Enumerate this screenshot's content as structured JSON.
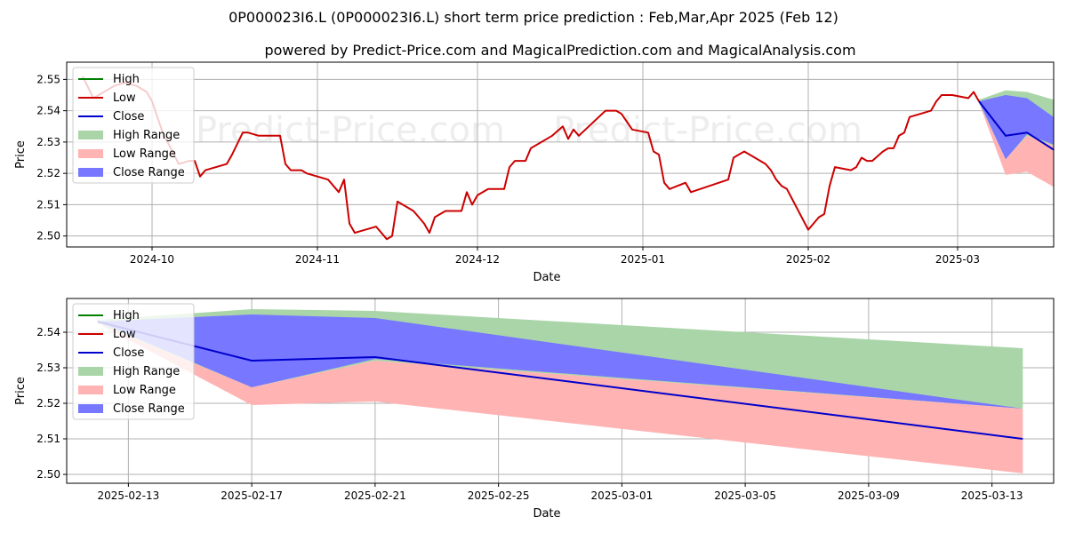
{
  "title": "0P000023I6.L (0P000023I6.L) short term price prediction : Feb,Mar,Apr 2025 (Feb 12)",
  "subtitle": "powered by Predict-Price.com and MagicalPrediction.com and MagicalAnalysis.com",
  "watermark": "Predict-Price.com",
  "colors": {
    "high": "#008000",
    "low": "#cc0000",
    "close": "#0000cc",
    "high_range": "#a9d5a9",
    "low_range": "#ffb3b3",
    "close_range": "#7777ff"
  },
  "legend": {
    "placement": "upper-left",
    "items": [
      {
        "label": "High",
        "type": "line",
        "color_key": "high"
      },
      {
        "label": "Low",
        "type": "line",
        "color_key": "low"
      },
      {
        "label": "Close",
        "type": "line",
        "color_key": "close"
      },
      {
        "label": "High Range",
        "type": "patch",
        "color_key": "high_range"
      },
      {
        "label": "Low Range",
        "type": "patch",
        "color_key": "low_range"
      },
      {
        "label": "Close Range",
        "type": "patch",
        "color_key": "close_range"
      }
    ]
  },
  "chart_data": [
    {
      "type": "line",
      "name": "top",
      "xlabel": "Date",
      "ylabel": "Price",
      "xlim": [
        "2024-09-15",
        "2025-03-19"
      ],
      "ylim": [
        2.4965,
        2.5555
      ],
      "grid": true,
      "xticks": [
        {
          "date": "2024-10-01",
          "label": "2024-10"
        },
        {
          "date": "2024-11-01",
          "label": "2024-11"
        },
        {
          "date": "2024-12-01",
          "label": "2024-12"
        },
        {
          "date": "2025-01-01",
          "label": "2025-01"
        },
        {
          "date": "2025-02-01",
          "label": "2025-02"
        },
        {
          "date": "2025-03-01",
          "label": "2025-03"
        }
      ],
      "yticks": [
        {
          "value": 2.5,
          "label": "2.50"
        },
        {
          "value": 2.51,
          "label": "2.51"
        },
        {
          "value": 2.52,
          "label": "2.52"
        },
        {
          "value": 2.53,
          "label": "2.53"
        },
        {
          "value": 2.54,
          "label": "2.54"
        },
        {
          "value": 2.55,
          "label": "2.55"
        }
      ],
      "low_series": [
        [
          "2024-09-18",
          2.551
        ],
        [
          "2024-09-20",
          2.544
        ],
        [
          "2024-09-24",
          2.548
        ],
        [
          "2024-09-26",
          2.549
        ],
        [
          "2024-09-28",
          2.548
        ],
        [
          "2024-09-30",
          2.546
        ],
        [
          "2024-10-01",
          2.543
        ],
        [
          "2024-10-03",
          2.533
        ],
        [
          "2024-10-06",
          2.523
        ],
        [
          "2024-10-08",
          2.524
        ],
        [
          "2024-10-09",
          2.524
        ],
        [
          "2024-10-10",
          2.519
        ],
        [
          "2024-10-11",
          2.521
        ],
        [
          "2024-10-15",
          2.523
        ],
        [
          "2024-10-16",
          2.526
        ],
        [
          "2024-10-18",
          2.533
        ],
        [
          "2024-10-19",
          2.533
        ],
        [
          "2024-10-21",
          2.532
        ],
        [
          "2024-10-23",
          2.532
        ],
        [
          "2024-10-25",
          2.532
        ],
        [
          "2024-10-26",
          2.523
        ],
        [
          "2024-10-27",
          2.521
        ],
        [
          "2024-10-29",
          2.521
        ],
        [
          "2024-10-30",
          2.52
        ],
        [
          "2024-11-03",
          2.518
        ],
        [
          "2024-11-05",
          2.514
        ],
        [
          "2024-11-06",
          2.518
        ],
        [
          "2024-11-07",
          2.504
        ],
        [
          "2024-11-08",
          2.501
        ],
        [
          "2024-11-12",
          2.503
        ],
        [
          "2024-11-14",
          2.499
        ],
        [
          "2024-11-15",
          2.5
        ],
        [
          "2024-11-16",
          2.511
        ],
        [
          "2024-11-19",
          2.508
        ],
        [
          "2024-11-20",
          2.506
        ],
        [
          "2024-11-21",
          2.504
        ],
        [
          "2024-11-22",
          2.501
        ],
        [
          "2024-11-23",
          2.506
        ],
        [
          "2024-11-25",
          2.508
        ],
        [
          "2024-11-28",
          2.508
        ],
        [
          "2024-11-29",
          2.514
        ],
        [
          "2024-11-30",
          2.51
        ],
        [
          "2024-12-01",
          2.513
        ],
        [
          "2024-12-03",
          2.515
        ],
        [
          "2024-12-06",
          2.515
        ],
        [
          "2024-12-07",
          2.522
        ],
        [
          "2024-12-08",
          2.524
        ],
        [
          "2024-12-10",
          2.524
        ],
        [
          "2024-12-11",
          2.528
        ],
        [
          "2024-12-15",
          2.532
        ],
        [
          "2024-12-17",
          2.535
        ],
        [
          "2024-12-18",
          2.531
        ],
        [
          "2024-12-19",
          2.534
        ],
        [
          "2024-12-20",
          2.532
        ],
        [
          "2024-12-25",
          2.54
        ],
        [
          "2024-12-27",
          2.54
        ],
        [
          "2024-12-28",
          2.539
        ],
        [
          "2024-12-30",
          2.534
        ],
        [
          "2025-01-02",
          2.533
        ],
        [
          "2025-01-03",
          2.527
        ],
        [
          "2025-01-04",
          2.526
        ],
        [
          "2025-01-05",
          2.517
        ],
        [
          "2025-01-06",
          2.515
        ],
        [
          "2025-01-09",
          2.517
        ],
        [
          "2025-01-10",
          2.514
        ],
        [
          "2025-01-17",
          2.518
        ],
        [
          "2025-01-18",
          2.525
        ],
        [
          "2025-01-20",
          2.527
        ],
        [
          "2025-01-24",
          2.523
        ],
        [
          "2025-01-25",
          2.521
        ],
        [
          "2025-01-26",
          2.518
        ],
        [
          "2025-01-27",
          2.516
        ],
        [
          "2025-01-28",
          2.515
        ],
        [
          "2025-02-01",
          2.502
        ],
        [
          "2025-02-03",
          2.506
        ],
        [
          "2025-02-04",
          2.507
        ],
        [
          "2025-02-05",
          2.516
        ],
        [
          "2025-02-06",
          2.522
        ],
        [
          "2025-02-09",
          2.521
        ],
        [
          "2025-02-10",
          2.522
        ],
        [
          "2025-02-11",
          2.525
        ],
        [
          "2025-02-12",
          2.524
        ],
        [
          "2025-02-13",
          2.524
        ],
        [
          "2025-02-15",
          2.527
        ],
        [
          "2025-02-16",
          2.528
        ],
        [
          "2025-02-17",
          2.528
        ],
        [
          "2025-02-18",
          2.532
        ],
        [
          "2025-02-19",
          2.533
        ],
        [
          "2025-02-20",
          2.538
        ],
        [
          "2025-02-22",
          2.539
        ],
        [
          "2025-02-24",
          2.54
        ],
        [
          "2025-02-25",
          2.543
        ],
        [
          "2025-02-26",
          2.545
        ],
        [
          "2025-02-28",
          2.545
        ],
        [
          "2025-03-03",
          2.544
        ],
        [
          "2025-03-04",
          2.546
        ],
        [
          "2025-03-05",
          2.543
        ]
      ],
      "forecast": {
        "dates": [
          "2025-02-12",
          "2025-02-17",
          "2025-02-21",
          "2025-03-14"
        ],
        "high_upper": [
          2.5435,
          2.5465,
          2.546,
          2.5355
        ],
        "high_lower": [
          2.5425,
          2.5245,
          2.532,
          2.5185
        ],
        "low_upper": [
          2.5425,
          2.5245,
          2.532,
          2.5185
        ],
        "low_lower": [
          2.5425,
          2.5195,
          2.5205,
          2.5003
        ],
        "close_upper": [
          2.543,
          2.545,
          2.544,
          2.5185
        ],
        "close_lower": [
          2.543,
          2.5245,
          2.5325,
          2.5185
        ],
        "close_line": [
          2.543,
          2.532,
          2.533,
          2.51
        ]
      },
      "forecast_offset_days": 21
    },
    {
      "type": "line",
      "name": "bottom",
      "xlabel": "Date",
      "ylabel": "Price",
      "xlim": [
        "2025-02-11",
        "2025-03-15"
      ],
      "ylim": [
        2.4975,
        2.5495
      ],
      "grid": true,
      "xticks": [
        {
          "date": "2025-02-13",
          "label": "2025-02-13"
        },
        {
          "date": "2025-02-17",
          "label": "2025-02-17"
        },
        {
          "date": "2025-02-21",
          "label": "2025-02-21"
        },
        {
          "date": "2025-02-25",
          "label": "2025-02-25"
        },
        {
          "date": "2025-03-01",
          "label": "2025-03-01"
        },
        {
          "date": "2025-03-05",
          "label": "2025-03-05"
        },
        {
          "date": "2025-03-09",
          "label": "2025-03-09"
        },
        {
          "date": "2025-03-13",
          "label": "2025-03-13"
        }
      ],
      "yticks": [
        {
          "value": 2.5,
          "label": "2.50"
        },
        {
          "value": 2.51,
          "label": "2.51"
        },
        {
          "value": 2.52,
          "label": "2.52"
        },
        {
          "value": 2.53,
          "label": "2.53"
        },
        {
          "value": 2.54,
          "label": "2.54"
        }
      ],
      "forecast": {
        "dates": [
          "2025-02-12",
          "2025-02-17",
          "2025-02-21",
          "2025-03-14"
        ],
        "high_upper": [
          2.5435,
          2.5465,
          2.546,
          2.5355
        ],
        "high_lower": [
          2.5425,
          2.5245,
          2.532,
          2.5185
        ],
        "low_upper": [
          2.5425,
          2.5245,
          2.532,
          2.5185
        ],
        "low_lower": [
          2.5425,
          2.5195,
          2.5205,
          2.5003
        ],
        "close_upper": [
          2.543,
          2.545,
          2.544,
          2.5185
        ],
        "close_lower": [
          2.543,
          2.5245,
          2.5325,
          2.5185
        ],
        "close_line": [
          2.543,
          2.532,
          2.533,
          2.51
        ]
      },
      "forecast_offset_days": 0
    }
  ]
}
